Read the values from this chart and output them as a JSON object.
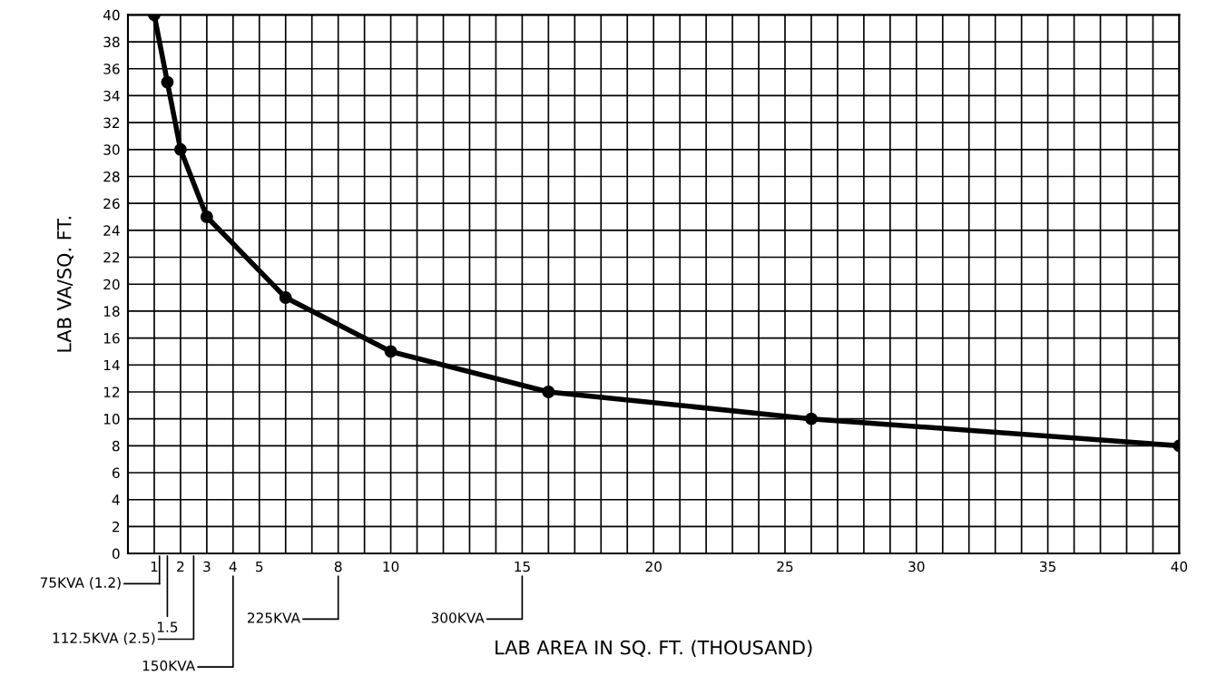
{
  "chart_data": {
    "type": "line",
    "xlabel": "LAB AREA IN SQ. FT. (THOUSAND)",
    "ylabel": "LAB VA/SQ. FT.",
    "x": [
      1,
      1.5,
      2,
      3,
      6,
      10,
      16,
      26,
      40
    ],
    "series": [
      {
        "color": "#000000",
        "values": [
          40,
          35,
          30,
          25,
          19,
          15,
          12,
          10,
          8
        ]
      }
    ],
    "xlim": [
      0,
      40
    ],
    "ylim": [
      0,
      40
    ],
    "xticks": [
      {
        "value": 0,
        "label": null
      },
      1,
      2,
      3,
      4,
      5,
      {
        "value": 6,
        "label": null
      },
      {
        "value": 7,
        "label": null
      },
      8,
      {
        "value": 9,
        "label": null
      },
      10,
      {
        "value": 11,
        "label": null
      },
      {
        "value": 12,
        "label": null
      },
      {
        "value": 13,
        "label": null
      },
      {
        "value": 14,
        "label": null
      },
      15,
      {
        "value": 16,
        "label": null
      },
      {
        "value": 17,
        "label": null
      },
      {
        "value": 18,
        "label": null
      },
      {
        "value": 19,
        "label": null
      },
      20,
      {
        "value": 21,
        "label": null
      },
      {
        "value": 22,
        "label": null
      },
      {
        "value": 23,
        "label": null
      },
      {
        "value": 24,
        "label": null
      },
      25,
      {
        "value": 26,
        "label": null
      },
      {
        "value": 27,
        "label": null
      },
      {
        "value": 28,
        "label": null
      },
      {
        "value": 29,
        "label": null
      },
      30,
      {
        "value": 31,
        "label": null
      },
      {
        "value": 32,
        "label": null
      },
      {
        "value": 33,
        "label": null
      },
      {
        "value": 34,
        "label": null
      },
      35,
      {
        "value": 36,
        "label": null
      },
      {
        "value": 37,
        "label": null
      },
      {
        "value": 38,
        "label": null
      },
      {
        "value": 39,
        "label": null
      },
      40
    ],
    "yticks": [
      0,
      2,
      4,
      6,
      8,
      10,
      12,
      14,
      16,
      18,
      20,
      22,
      24,
      26,
      28,
      30,
      32,
      34,
      36,
      38,
      40
    ],
    "grid": true,
    "marker": "circle",
    "line_style": "solid",
    "annotations": [
      "75KVA (1.2)",
      "1.5",
      "112.5KVA (2.5)",
      "150KVA",
      "225KVA",
      "300KVA"
    ]
  }
}
